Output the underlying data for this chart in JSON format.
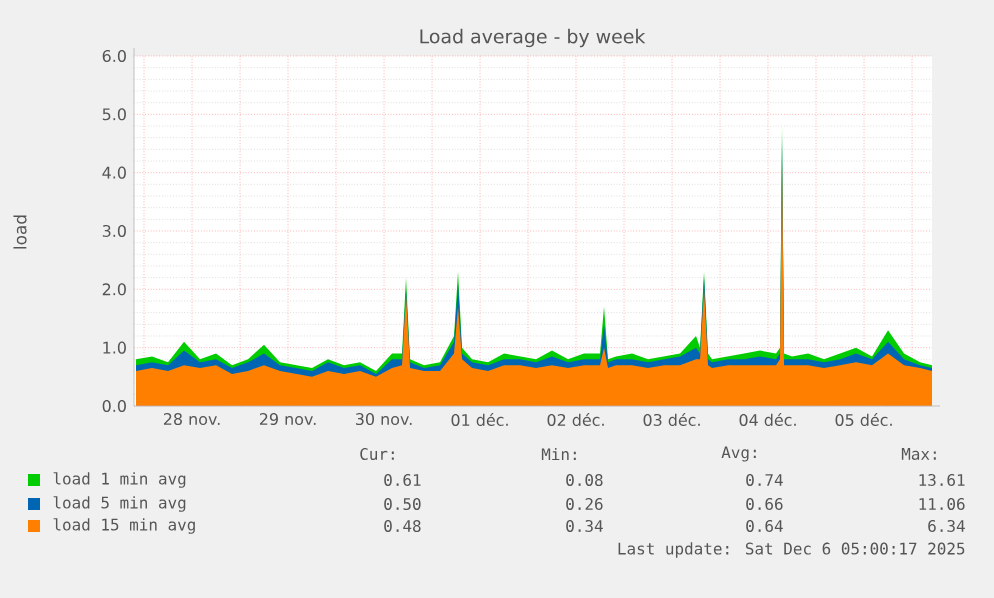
{
  "chart_data": {
    "type": "area",
    "title": "Load average - by week",
    "ylabel": "load",
    "x": [
      "2025-11-27T22:00",
      "2025-11-28T02:00",
      "2025-11-28T06:00",
      "2025-11-28T10:00",
      "2025-11-28T14:00",
      "2025-11-28T18:00",
      "2025-11-28T22:00",
      "2025-11-29T02:00",
      "2025-11-29T06:00",
      "2025-11-29T10:00",
      "2025-11-29T14:00",
      "2025-11-29T18:00",
      "2025-11-29T22:00",
      "2025-11-30T02:00",
      "2025-11-30T06:00",
      "2025-11-30T10:00",
      "2025-11-30T14:00",
      "2025-11-30T16:30",
      "2025-11-30T17:30",
      "2025-11-30T18:30",
      "2025-11-30T22:00",
      "2025-12-01T02:00",
      "2025-12-01T05:30",
      "2025-12-01T06:30",
      "2025-12-01T07:30",
      "2025-12-01T10:00",
      "2025-12-01T14:00",
      "2025-12-01T18:00",
      "2025-12-01T22:00",
      "2025-12-02T02:00",
      "2025-12-02T06:00",
      "2025-12-02T10:00",
      "2025-12-02T14:00",
      "2025-12-02T18:00",
      "2025-12-02T19:00",
      "2025-12-02T20:00",
      "2025-12-02T22:00",
      "2025-12-03T02:00",
      "2025-12-03T06:00",
      "2025-12-03T10:00",
      "2025-12-03T14:00",
      "2025-12-03T18:00",
      "2025-12-03T19:00",
      "2025-12-03T20:00",
      "2025-12-03T21:00",
      "2025-12-03T22:00",
      "2025-12-04T02:00",
      "2025-12-04T06:00",
      "2025-12-04T10:00",
      "2025-12-04T14:00",
      "2025-12-04T15:00",
      "2025-12-04T15:30",
      "2025-12-04T16:00",
      "2025-12-04T18:00",
      "2025-12-04T22:00",
      "2025-12-05T02:00",
      "2025-12-05T06:00",
      "2025-12-05T10:00",
      "2025-12-05T14:00",
      "2025-12-05T18:00",
      "2025-12-05T22:00",
      "2025-12-06T02:00",
      "2025-12-06T05:00"
    ],
    "series": [
      {
        "name": "load 1 min avg",
        "color": "#00cc00",
        "values": [
          0.8,
          0.85,
          0.75,
          1.1,
          0.8,
          0.9,
          0.7,
          0.8,
          1.05,
          0.75,
          0.7,
          0.65,
          0.8,
          0.7,
          0.75,
          0.6,
          0.9,
          0.9,
          2.2,
          0.8,
          0.7,
          0.75,
          1.2,
          2.3,
          1.0,
          0.8,
          0.75,
          0.9,
          0.85,
          0.8,
          0.95,
          0.8,
          0.9,
          0.9,
          1.7,
          0.8,
          0.85,
          0.9,
          0.8,
          0.85,
          0.9,
          1.2,
          1.0,
          2.3,
          0.9,
          0.8,
          0.85,
          0.9,
          0.95,
          0.9,
          1.0,
          4.8,
          0.9,
          0.85,
          0.9,
          0.8,
          0.9,
          1.0,
          0.85,
          1.3,
          0.9,
          0.75,
          0.7
        ]
      },
      {
        "name": "load 5 min avg",
        "color": "#0066b3",
        "values": [
          0.7,
          0.75,
          0.7,
          0.95,
          0.75,
          0.8,
          0.65,
          0.75,
          0.9,
          0.7,
          0.65,
          0.6,
          0.75,
          0.65,
          0.7,
          0.55,
          0.8,
          0.8,
          2.0,
          0.75,
          0.65,
          0.7,
          1.1,
          2.1,
          0.9,
          0.75,
          0.7,
          0.8,
          0.8,
          0.75,
          0.85,
          0.75,
          0.8,
          0.8,
          1.4,
          0.75,
          0.8,
          0.8,
          0.75,
          0.8,
          0.85,
          1.0,
          0.9,
          2.2,
          0.8,
          0.75,
          0.8,
          0.8,
          0.85,
          0.8,
          0.9,
          4.6,
          0.8,
          0.8,
          0.8,
          0.75,
          0.8,
          0.9,
          0.8,
          1.1,
          0.8,
          0.7,
          0.65
        ]
      },
      {
        "name": "load 15 min avg",
        "color": "#ff8000",
        "values": [
          0.6,
          0.65,
          0.6,
          0.7,
          0.65,
          0.7,
          0.55,
          0.6,
          0.7,
          0.6,
          0.55,
          0.5,
          0.6,
          0.55,
          0.6,
          0.5,
          0.65,
          0.7,
          1.9,
          0.65,
          0.6,
          0.6,
          0.9,
          1.7,
          0.8,
          0.65,
          0.6,
          0.7,
          0.7,
          0.65,
          0.7,
          0.65,
          0.7,
          0.7,
          1.0,
          0.65,
          0.7,
          0.7,
          0.65,
          0.7,
          0.7,
          0.8,
          0.8,
          2.0,
          0.7,
          0.65,
          0.7,
          0.7,
          0.7,
          0.7,
          0.8,
          4.2,
          0.7,
          0.7,
          0.7,
          0.65,
          0.7,
          0.75,
          0.7,
          0.9,
          0.7,
          0.65,
          0.6
        ]
      }
    ],
    "xlim": [
      "2025-11-27T21:30",
      "2025-12-06T05:00"
    ],
    "xticks": [
      {
        "value": "2025-11-28T00:00",
        "label": null
      },
      {
        "value": "2025-11-28T12:00",
        "label": "28 nov."
      },
      {
        "value": "2025-11-29T00:00",
        "label": null
      },
      {
        "value": "2025-11-29T12:00",
        "label": "29 nov."
      },
      {
        "value": "2025-11-30T00:00",
        "label": null
      },
      {
        "value": "2025-11-30T12:00",
        "label": "30 nov."
      },
      {
        "value": "2025-12-01T00:00",
        "label": null
      },
      {
        "value": "2025-12-01T12:00",
        "label": "01 déc."
      },
      {
        "value": "2025-12-02T00:00",
        "label": null
      },
      {
        "value": "2025-12-02T12:00",
        "label": "02 déc."
      },
      {
        "value": "2025-12-03T00:00",
        "label": null
      },
      {
        "value": "2025-12-03T12:00",
        "label": "03 déc."
      },
      {
        "value": "2025-12-04T00:00",
        "label": null
      },
      {
        "value": "2025-12-04T12:00",
        "label": "04 déc."
      },
      {
        "value": "2025-12-05T00:00",
        "label": null
      },
      {
        "value": "2025-12-05T12:00",
        "label": "05 déc."
      },
      {
        "value": "2025-12-06T00:00",
        "label": null
      }
    ],
    "ylim": [
      0,
      6
    ],
    "yticks": [
      {
        "value": 0,
        "label": "0.0"
      },
      {
        "value": 1,
        "label": "1.0"
      },
      {
        "value": 2,
        "label": "2.0"
      },
      {
        "value": 3,
        "label": "3.0"
      },
      {
        "value": 4,
        "label": "4.0"
      },
      {
        "value": 5,
        "label": "5.0"
      },
      {
        "value": 6,
        "label": "6.0"
      }
    ],
    "grid": true,
    "legend": "bottom",
    "annotations": [
      "Cur:",
      "Min:",
      "Avg:",
      "Max:",
      "0.61",
      "0.08",
      "0.74",
      "13.61",
      "0.50",
      "0.26",
      "0.66",
      "11.06",
      "0.48",
      "0.34",
      "0.64",
      "6.34",
      "Last update: Sat Dec  6 05:00:17 2025"
    ]
  }
}
